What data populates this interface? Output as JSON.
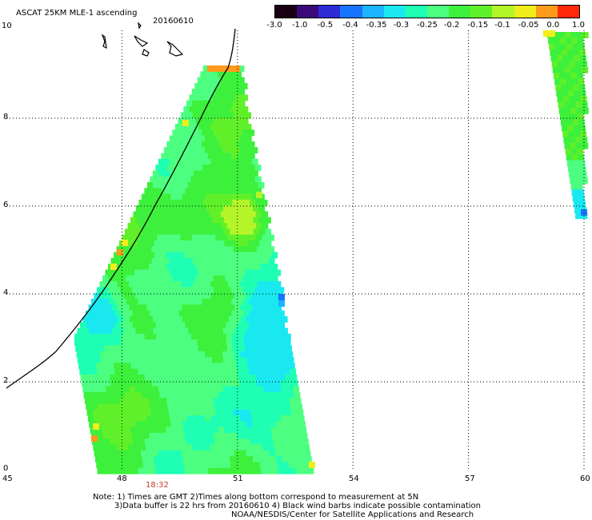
{
  "header": {
    "product": "ASCAT 25KM MLE-1 ascending",
    "date": "20160610"
  },
  "colorbar": {
    "colors": [
      "#1a0014",
      "#3a0a7a",
      "#2d2bd6",
      "#1874ff",
      "#1cb4ff",
      "#1ae8f0",
      "#1effb4",
      "#4dff80",
      "#3cf03c",
      "#60f02a",
      "#b4f52a",
      "#f0ee1a",
      "#ff9a1a",
      "#ff2a0a"
    ],
    "tick_labels": [
      "-3.0",
      "-1.0",
      "-0.5",
      "-0.4",
      "-0.35",
      "-0.3",
      "-0.25",
      "-0.2",
      "-0.15",
      "-0.1",
      "-0.05",
      "0.0",
      "1.0"
    ]
  },
  "map": {
    "x_ticks": [
      "45",
      "48",
      "51",
      "54",
      "57",
      "60"
    ],
    "y_ticks": [
      "0",
      "2",
      "4",
      "6",
      "8",
      "10"
    ],
    "time_label": "18:32",
    "time_color": "#c0392b"
  },
  "notes": {
    "line1": "Note: 1) Times are GMT 2)Times along bottom correspond to measurement at 5N",
    "line2": "3)Data buffer is 22 hrs from 20160610 4) Black wind barbs indicate possible contamination",
    "line3": "NOAA/NESDIS/Center for Satellite Applications and Research"
  }
}
